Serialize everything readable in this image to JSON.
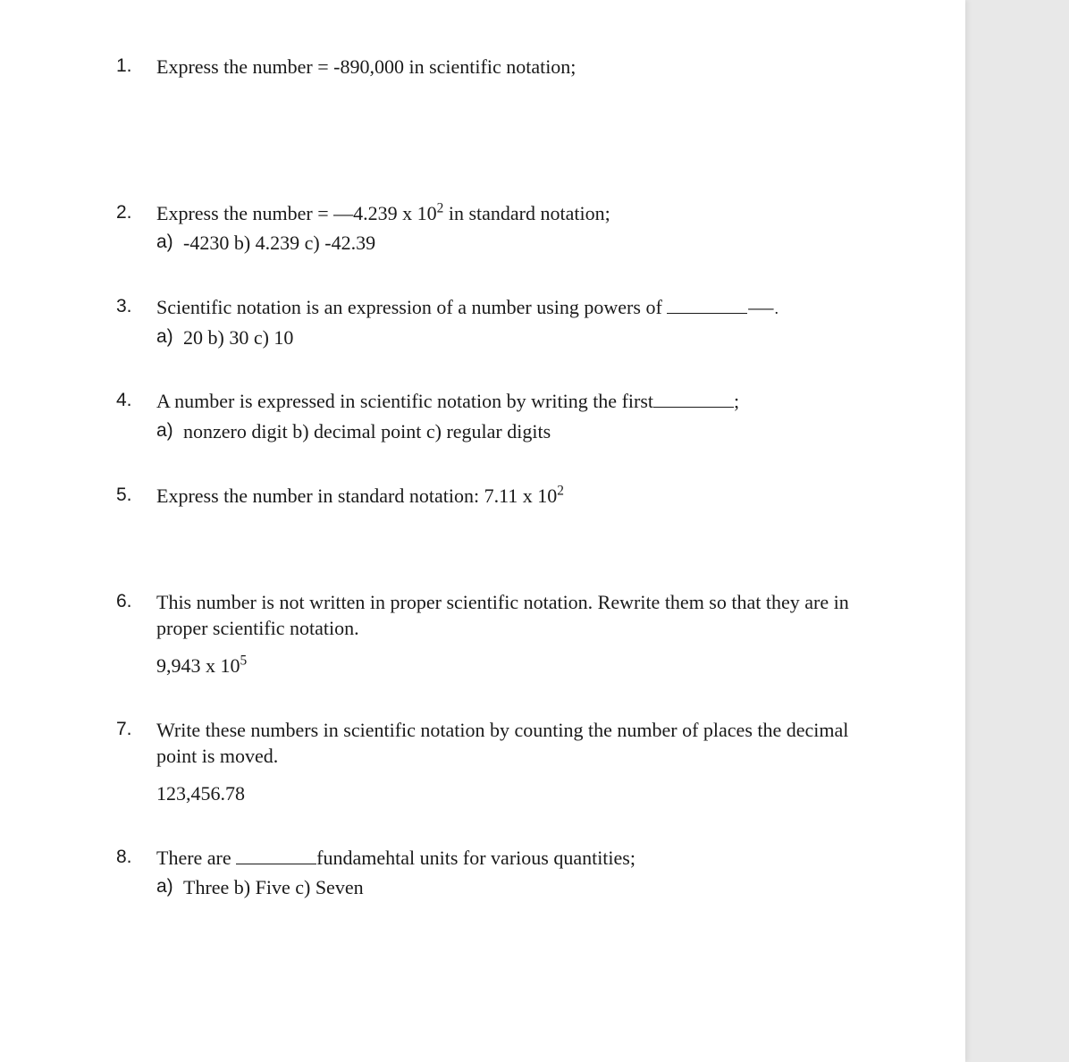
{
  "page": {
    "background_color": "#ffffff",
    "outer_background": "#e8e8e8",
    "text_color": "#1a1a1a",
    "font_family_body": "Times New Roman",
    "font_family_markers": "Arial",
    "font_size_body": 22,
    "font_size_markers": 21
  },
  "questions": [
    {
      "num": "1.",
      "text_parts": [
        "Express the number = -890,000 in scientific notation;"
      ],
      "answers": null
    },
    {
      "num": "2.",
      "text_parts": [
        "Express the number = ",
        "—",
        "4.239 x 10",
        "2",
        " in standard notation;"
      ],
      "answers": {
        "label": "a)",
        "text": "-4230 b) 4.239 c) -42.39"
      }
    },
    {
      "num": "3.",
      "text_parts": [
        "Scientific notation is an expression of a number using powers of ",
        "BLANK_ARROW"
      ],
      "answers": {
        "label": "a)",
        "text": "20 b) 30 c) 10"
      }
    },
    {
      "num": "4.",
      "text_parts": [
        "A number is expressed in scientific notation by writing the first",
        "BLANK",
        ";"
      ],
      "answers": {
        "label": "a)",
        "text": "nonzero digit b) decimal point c) regular digits"
      }
    },
    {
      "num": "5.",
      "text_parts": [
        "Express the number in standard notation: 7.11 x 10",
        "2"
      ],
      "answers": null
    },
    {
      "num": "6.",
      "text_parts": [
        "This number is not written in proper scientific notation. Rewrite them so that they are in proper scientific notation."
      ],
      "sub_value_parts": [
        "9,943 x 10",
        "5"
      ],
      "answers": null
    },
    {
      "num": "7.",
      "text_parts": [
        "Write these numbers in scientific notation by counting the number of places the decimal point is moved."
      ],
      "sub_value_parts": [
        "123,456.78"
      ],
      "answers": null
    },
    {
      "num": "8.",
      "text_parts": [
        "There are ",
        "BLANK",
        "fundamehtal units for various quantities;"
      ],
      "answers": {
        "label": "a)",
        "text": "Three b) Five c) Seven"
      }
    }
  ],
  "gaps_after": [
    "gap-large",
    "",
    "gap-small",
    "gap-small",
    "gap-medium",
    "gap-small",
    "gap-small",
    ""
  ]
}
